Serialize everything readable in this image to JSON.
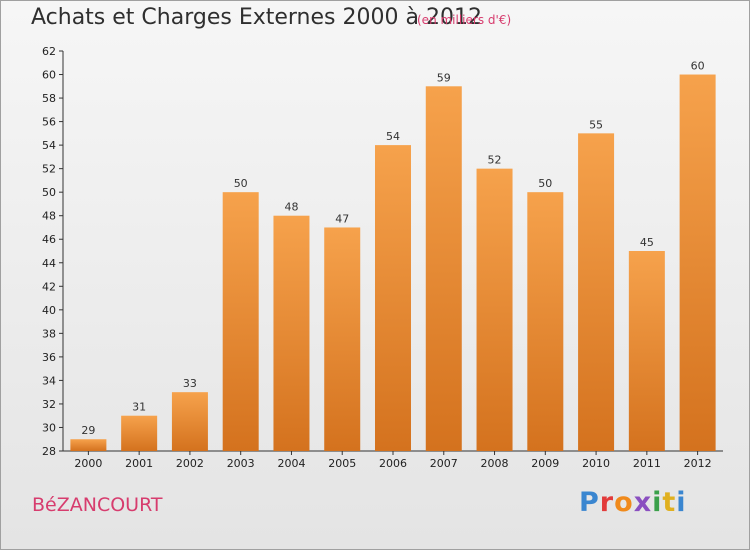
{
  "header": {
    "title": "Achats et Charges Externes 2000 à 2012",
    "subtitle": "(en milliers d'€)"
  },
  "footer": {
    "commune": "BéZANCOURT",
    "brand": "Proxiti"
  },
  "colors": {
    "bar_top": "#f6a24c",
    "bar_bottom": "#d4721e",
    "commune_text": "#d73c6e"
  },
  "chart_data": {
    "type": "bar",
    "categories": [
      "2000",
      "2001",
      "2002",
      "2003",
      "2004",
      "2005",
      "2006",
      "2007",
      "2008",
      "2009",
      "2010",
      "2011",
      "2012"
    ],
    "values": [
      29,
      31,
      33,
      50,
      48,
      47,
      54,
      59,
      52,
      50,
      55,
      45,
      60
    ],
    "title": "Achats et Charges Externes 2000 à 2012",
    "subtitle": "(en milliers d'€)",
    "xlabel": "",
    "ylabel": "",
    "ylim": [
      28,
      62
    ],
    "yticks": [
      28,
      30,
      32,
      34,
      36,
      38,
      40,
      42,
      44,
      46,
      48,
      50,
      52,
      54,
      56,
      58,
      60,
      62
    ],
    "grid": false
  }
}
